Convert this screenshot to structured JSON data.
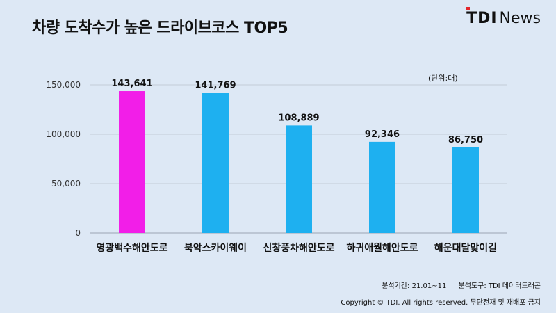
{
  "header": {
    "title": "차량 도착수가 높은 드라이브코스 TOP5",
    "logo_brand": "TDI",
    "logo_news": "News"
  },
  "unit_label": "(단위:대)",
  "footer": {
    "period": "분석기간: 21.01~11",
    "tool": "분석도구: TDI 데이터드래곤",
    "copyright": "Copyright © TDI. All rights reserved. 무단전재 및 재배포 금지"
  },
  "colors": {
    "highlight": "#f21ee8",
    "bar": "#1eb0f0",
    "grid": "#c3cbd6",
    "logo_dot": "#e3262b"
  },
  "chart_data": {
    "type": "bar",
    "categories": [
      "영광백수해안도로",
      "북악스카이웨이",
      "신창풍차해안도로",
      "하귀애월해안도로",
      "해운대달맞이길"
    ],
    "values": [
      143641,
      141769,
      108889,
      92346,
      86750
    ],
    "value_labels": [
      "143,641",
      "141,769",
      "108,889",
      "92,346",
      "86,750"
    ],
    "yticks": [
      0,
      50000,
      100000,
      150000
    ],
    "ytick_labels": [
      "0",
      "50,000",
      "100,000",
      "150,000"
    ],
    "ylim": [
      0,
      150000
    ],
    "highlight_index": 0,
    "grid": true,
    "title": "차량 도착수가 높은 드라이브코스 TOP5"
  }
}
